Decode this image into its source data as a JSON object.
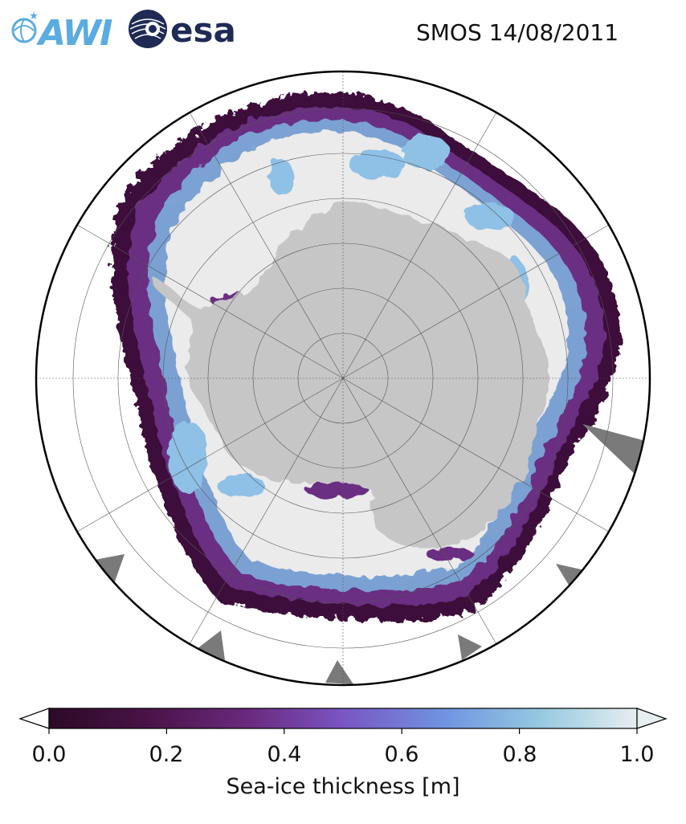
{
  "header": {
    "logo_awi_text": "AWI",
    "logo_esa_text": "esa",
    "title": "SMOS 14/08/2011"
  },
  "colors": {
    "land": "#c6c6c6",
    "thick_ice": "#ebebeb",
    "thin_ice_dark": "#3d0f3a",
    "thin_ice_mid": "#6a2f82",
    "ice_light_blue": "#7fb6e2",
    "missing_data": "#7a7a7a",
    "awi_blue": "#5aace0",
    "esa_navy": "#1f2a55"
  },
  "map": {
    "projection": "south-polar-stereographic",
    "gridlines": true
  },
  "colorbar": {
    "label": "Sea-ice thickness [m]",
    "ticks": [
      "0.0",
      "0.2",
      "0.4",
      "0.6",
      "0.8",
      "1.0"
    ],
    "range": [
      0.0,
      1.0
    ],
    "extend": "both",
    "stops": [
      "#2b0a26",
      "#4a1348",
      "#6a2a7e",
      "#7a55c4",
      "#6f93e0",
      "#93c7e0",
      "#e6eef0"
    ]
  }
}
